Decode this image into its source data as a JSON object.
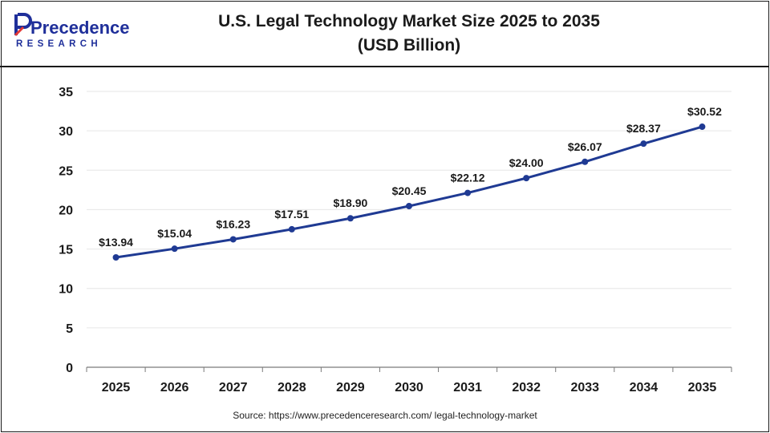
{
  "brand": {
    "name_line1": "Precedence",
    "name_line2": "RESEARCH",
    "colors": {
      "primary": "#1f2f9a",
      "accent": "#e53935"
    }
  },
  "title_line1": "U.S. Legal Technology Market Size 2025 to 2035",
  "title_line2": "(USD Billion)",
  "source": "Source: https://www.precedenceresearch.com/ legal-technology-market",
  "chart_data": {
    "type": "line",
    "categories": [
      "2025",
      "2026",
      "2027",
      "2028",
      "2029",
      "2030",
      "2031",
      "2032",
      "2033",
      "2034",
      "2035"
    ],
    "series": [
      {
        "values": [
          13.94,
          15.04,
          16.23,
          17.51,
          18.9,
          20.45,
          22.12,
          24.0,
          26.07,
          28.37,
          30.52
        ]
      }
    ],
    "data_labels": [
      "$13.94",
      "$15.04",
      "$16.23",
      "$17.51",
      "$18.90",
      "$20.45",
      "$22.12",
      "$24.00",
      "$26.07",
      "$28.37",
      "$30.52"
    ],
    "y_ticks": [
      0,
      5,
      10,
      15,
      20,
      25,
      30,
      35
    ],
    "ylim": [
      0,
      35
    ],
    "grid": true,
    "line_color": "#1f3a93"
  }
}
